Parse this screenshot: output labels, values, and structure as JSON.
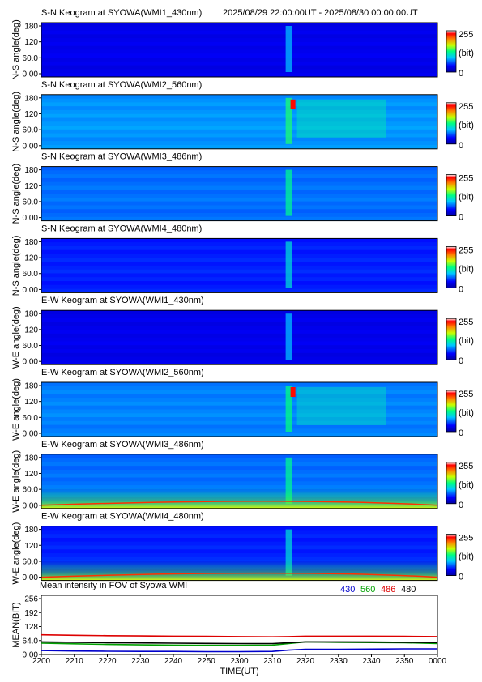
{
  "header": {
    "time_range": "2025/08/29 22:00:00UT - 2025/08/30 00:00:00UT"
  },
  "colorbar": {
    "max_label": "255",
    "unit_label": "(bit)",
    "min_label": "0"
  },
  "keograms": [
    {
      "title": "S-N Keogram at SYOWA(WMI1_430nm)",
      "ylabel": "N-S angle(deg)",
      "level": 0.12
    },
    {
      "title": "S-N Keogram at SYOWA(WMI2_560nm)",
      "ylabel": "N-S angle(deg)",
      "level": 0.3
    },
    {
      "title": "S-N Keogram at SYOWA(WMI3_486nm)",
      "ylabel": "N-S angle(deg)",
      "level": 0.26
    },
    {
      "title": "S-N Keogram at SYOWA(WMI4_480nm)",
      "ylabel": "N-S angle(deg)",
      "level": 0.18
    },
    {
      "title": "E-W Keogram at SYOWA(WMI1_430nm)",
      "ylabel": "W-E angle(deg)",
      "level": 0.12
    },
    {
      "title": "E-W Keogram at SYOWA(WMI2_560nm)",
      "ylabel": "W-E angle(deg)",
      "level": 0.28
    },
    {
      "title": "E-W Keogram at SYOWA(WMI3_486nm)",
      "ylabel": "W-E angle(deg)",
      "level": 0.26
    },
    {
      "title": "E-W Keogram at SYOWA(WMI4_480nm)",
      "ylabel": "W-E angle(deg)",
      "level": 0.18
    }
  ],
  "keogram_yticks": [
    "180",
    "120",
    "60.0",
    "0.00"
  ],
  "chart_data": {
    "type": "line",
    "title": "Mean intensity in FOV of Syowa WMI",
    "xlabel": "TIME(UT)",
    "ylabel": "MEAN(BIT)",
    "ylim": [
      0,
      256
    ],
    "xlim": [
      0,
      120
    ],
    "yticks": [
      "0.00",
      "64.0",
      "128",
      "192",
      "256"
    ],
    "ytick_values": [
      0,
      64,
      128,
      192,
      256
    ],
    "xticks": [
      "2200",
      "2210",
      "2220",
      "2230",
      "2240",
      "2250",
      "2300",
      "2310",
      "2320",
      "2330",
      "2340",
      "2350",
      "0000"
    ],
    "xtick_values": [
      0,
      10,
      20,
      30,
      40,
      50,
      60,
      70,
      80,
      90,
      100,
      110,
      120
    ],
    "series": [
      {
        "name": "430",
        "color": "#0000cc",
        "x": [
          0,
          10,
          20,
          30,
          40,
          50,
          60,
          70,
          75,
          80,
          90,
          100,
          110,
          120
        ],
        "y": [
          18,
          16,
          15,
          14,
          14,
          13,
          13,
          14,
          20,
          24,
          24,
          25,
          26,
          26
        ]
      },
      {
        "name": "560",
        "color": "#00a000",
        "x": [
          0,
          10,
          20,
          30,
          40,
          50,
          60,
          70,
          75,
          80,
          90,
          100,
          110,
          120
        ],
        "y": [
          52,
          49,
          46,
          44,
          43,
          42,
          42,
          43,
          50,
          58,
          56,
          55,
          54,
          50
        ]
      },
      {
        "name": "486",
        "color": "#dd0000",
        "x": [
          0,
          10,
          20,
          30,
          40,
          50,
          60,
          70,
          75,
          80,
          90,
          100,
          110,
          120
        ],
        "y": [
          90,
          88,
          86,
          85,
          84,
          83,
          82,
          81,
          82,
          84,
          84,
          84,
          83,
          82
        ]
      },
      {
        "name": "480",
        "color": "#000000",
        "x": [
          0,
          10,
          20,
          30,
          40,
          50,
          60,
          70,
          75,
          80,
          90,
          100,
          110,
          120
        ],
        "y": [
          58,
          56,
          54,
          53,
          52,
          51,
          50,
          50,
          54,
          58,
          58,
          57,
          56,
          55
        ]
      }
    ]
  }
}
